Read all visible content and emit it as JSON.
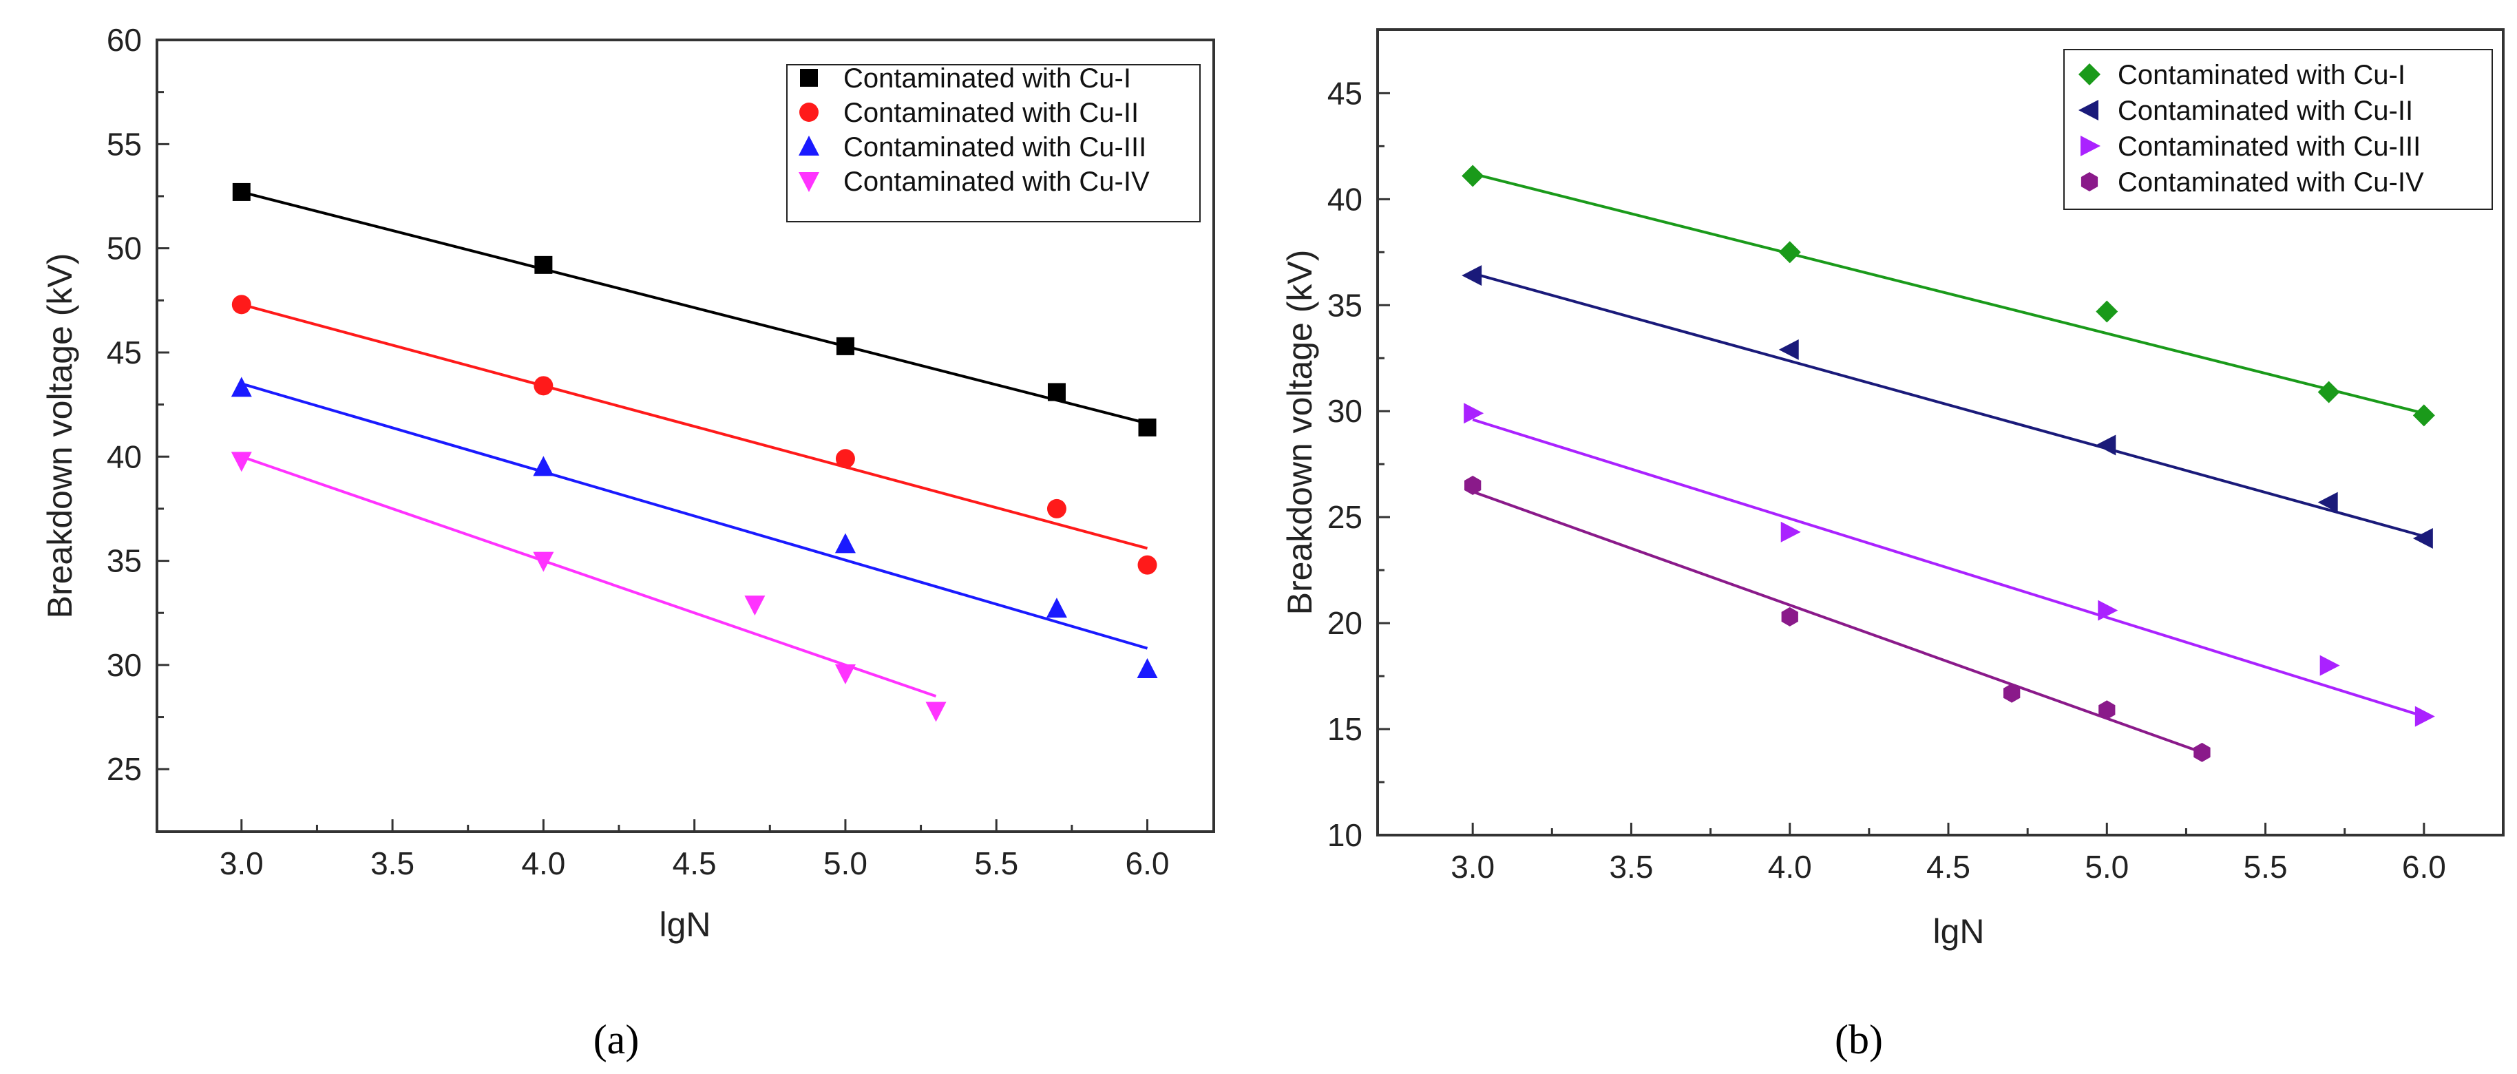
{
  "colors": {
    "axis": "#333333",
    "background": "#ffffff"
  },
  "chart_data": [
    {
      "type": "scatter",
      "panel_label": "(a)",
      "xlabel": "lgN",
      "ylabel": "Breakdown voltage (kV)",
      "xlim": [
        2.72,
        6.22
      ],
      "ylim": [
        22,
        60
      ],
      "xticks": [
        "3.0",
        "3.5",
        "4.0",
        "4.5",
        "5.0",
        "5.5",
        "6.0"
      ],
      "yticks": [
        "25",
        "30",
        "35",
        "40",
        "45",
        "50",
        "55",
        "60"
      ],
      "legend_position": "top-right",
      "grid": false,
      "series": [
        {
          "name": "Contaminated with Cu-I",
          "color": "#000000",
          "marker": "square",
          "points": [
            [
              3.0,
              52.7
            ],
            [
              4.0,
              49.2
            ],
            [
              5.0,
              45.3
            ],
            [
              5.7,
              43.1
            ],
            [
              6.0,
              41.4
            ]
          ],
          "fit": [
            [
              3.0,
              52.7
            ],
            [
              6.0,
              41.6
            ]
          ]
        },
        {
          "name": "Contaminated with Cu-II",
          "color": "#ff1a1a",
          "marker": "circle",
          "points": [
            [
              3.0,
              47.3
            ],
            [
              4.0,
              43.4
            ],
            [
              5.0,
              39.9
            ],
            [
              5.7,
              37.5
            ],
            [
              6.0,
              34.8
            ]
          ],
          "fit": [
            [
              3.0,
              47.3
            ],
            [
              6.0,
              35.6
            ]
          ]
        },
        {
          "name": "Contaminated with Cu-III",
          "color": "#1a1aff",
          "marker": "triangle-up",
          "points": [
            [
              3.0,
              43.3
            ],
            [
              4.0,
              39.5
            ],
            [
              5.0,
              35.8
            ],
            [
              5.7,
              32.7
            ],
            [
              6.0,
              29.8
            ]
          ],
          "fit": [
            [
              3.0,
              43.5
            ],
            [
              6.0,
              30.8
            ]
          ]
        },
        {
          "name": "Contaminated with Cu-IV",
          "color": "#ff33ff",
          "marker": "triangle-down",
          "points": [
            [
              3.0,
              39.8
            ],
            [
              4.0,
              35.0
            ],
            [
              4.7,
              32.9
            ],
            [
              5.0,
              29.6
            ],
            [
              5.3,
              27.8
            ]
          ],
          "fit": [
            [
              3.0,
              40.0
            ],
            [
              5.3,
              28.5
            ]
          ]
        }
      ]
    },
    {
      "type": "scatter",
      "panel_label": "(b)",
      "xlabel": "lgN",
      "ylabel": "Breakdown voltage (kV)",
      "xlim": [
        2.7,
        6.25
      ],
      "ylim": [
        10,
        48
      ],
      "xticks": [
        "3.0",
        "3.5",
        "4.0",
        "4.5",
        "5.0",
        "5.5",
        "6.0"
      ],
      "yticks": [
        "10",
        "15",
        "20",
        "25",
        "30",
        "35",
        "40",
        "45"
      ],
      "legend_position": "top-right",
      "grid": false,
      "series": [
        {
          "name": "Contaminated with Cu-I",
          "color": "#1a9a1a",
          "marker": "diamond",
          "points": [
            [
              3.0,
              41.1
            ],
            [
              4.0,
              37.5
            ],
            [
              5.0,
              34.7
            ],
            [
              5.7,
              30.9
            ],
            [
              6.0,
              29.8
            ]
          ],
          "fit": [
            [
              3.0,
              41.2
            ],
            [
              6.0,
              29.9
            ]
          ]
        },
        {
          "name": "Contaminated with Cu-II",
          "color": "#1a1a7a",
          "marker": "triangle-left",
          "points": [
            [
              3.0,
              36.4
            ],
            [
              4.0,
              32.9
            ],
            [
              5.0,
              28.4
            ],
            [
              5.7,
              25.7
            ],
            [
              6.0,
              24.0
            ]
          ],
          "fit": [
            [
              3.0,
              36.5
            ],
            [
              6.0,
              24.1
            ]
          ]
        },
        {
          "name": "Contaminated with Cu-III",
          "color": "#aa22ff",
          "marker": "triangle-right",
          "points": [
            [
              3.0,
              29.9
            ],
            [
              4.0,
              24.3
            ],
            [
              5.0,
              20.6
            ],
            [
              5.7,
              18.0
            ],
            [
              6.0,
              15.6
            ]
          ],
          "fit": [
            [
              3.0,
              29.6
            ],
            [
              6.0,
              15.6
            ]
          ]
        },
        {
          "name": "Contaminated with Cu-IV",
          "color": "#8a1a8a",
          "marker": "hexagon",
          "points": [
            [
              3.0,
              26.5
            ],
            [
              4.0,
              20.3
            ],
            [
              4.7,
              16.7
            ],
            [
              5.0,
              15.9
            ],
            [
              5.3,
              13.9
            ]
          ],
          "fit": [
            [
              3.0,
              26.2
            ],
            [
              5.3,
              13.9
            ]
          ]
        }
      ]
    }
  ]
}
